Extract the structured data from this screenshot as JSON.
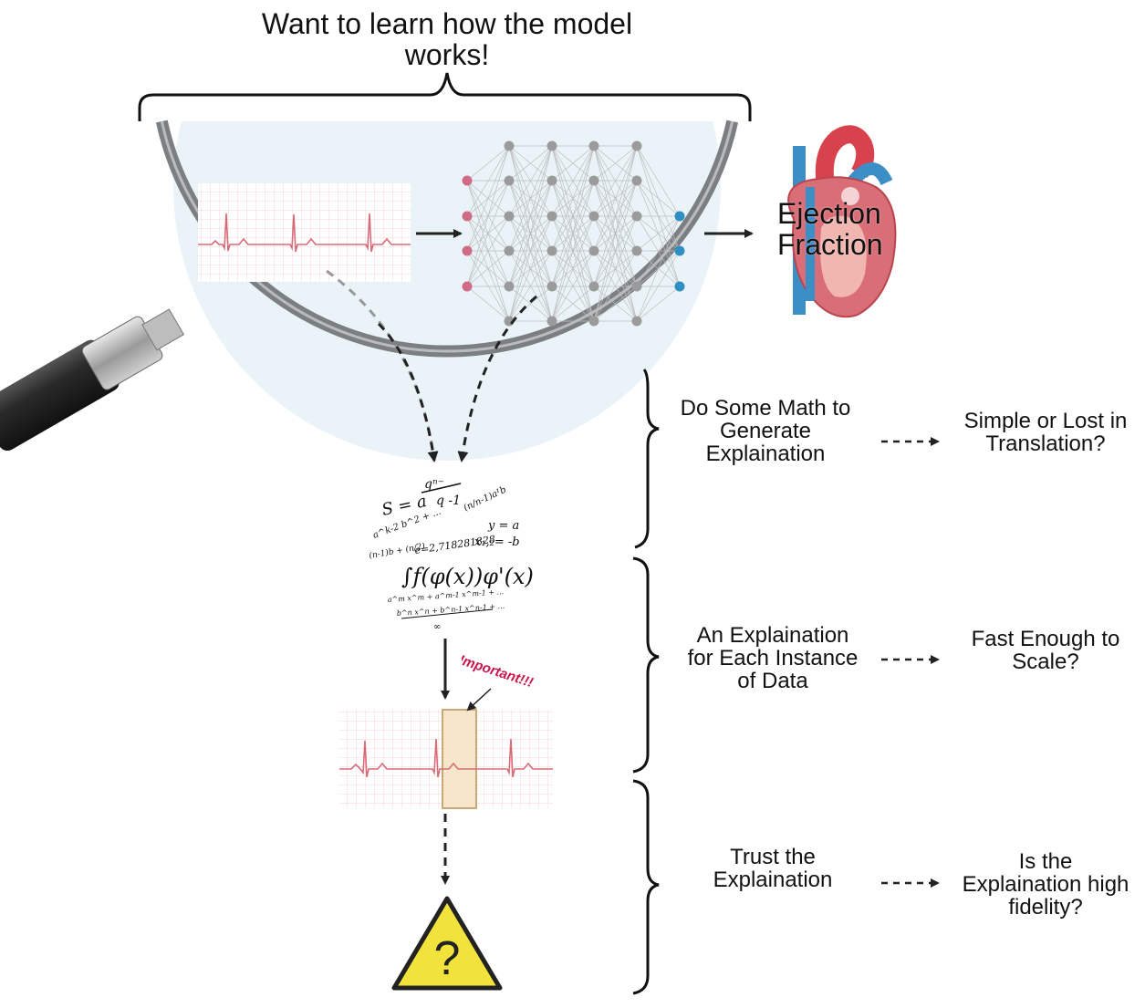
{
  "title": "Want to learn how the model\nworks!",
  "output_label": "Ejection\nFraction",
  "important_label": "Important!!!",
  "steps": [
    {
      "text": "Do Some Math to\nGenerate\nExplaination",
      "question": "Simple or Lost in\nTranslation?"
    },
    {
      "text": "An Explaination\nfor Each Instance\nof Data",
      "question": "Fast Enough to\nScale?"
    },
    {
      "text": "Trust the\nExplaination",
      "question": "Is the\nExplaination high\nfidelity?"
    }
  ],
  "warning_symbol": "?",
  "icons": {
    "magnifier": "magnifying-glass-icon",
    "heart": "heart-icon",
    "math": "math-formulas-icon",
    "warning": "warning-triangle-icon",
    "network": "neural-network-icon",
    "ecg": "ecg-strip-icon"
  },
  "colors": {
    "lens_fill": "#eaf4f8",
    "lens_rim": "#7c7f82",
    "input_node": "#d06a86",
    "hidden_node": "#9b9b9b",
    "output_node": "#2f8fc2",
    "ecg_line": "#d96b78",
    "ecg_grid": "#f3c6cc",
    "highlight": "#f5e3c2",
    "warning_yellow": "#f2e33c",
    "important_red": "#c8174a"
  }
}
